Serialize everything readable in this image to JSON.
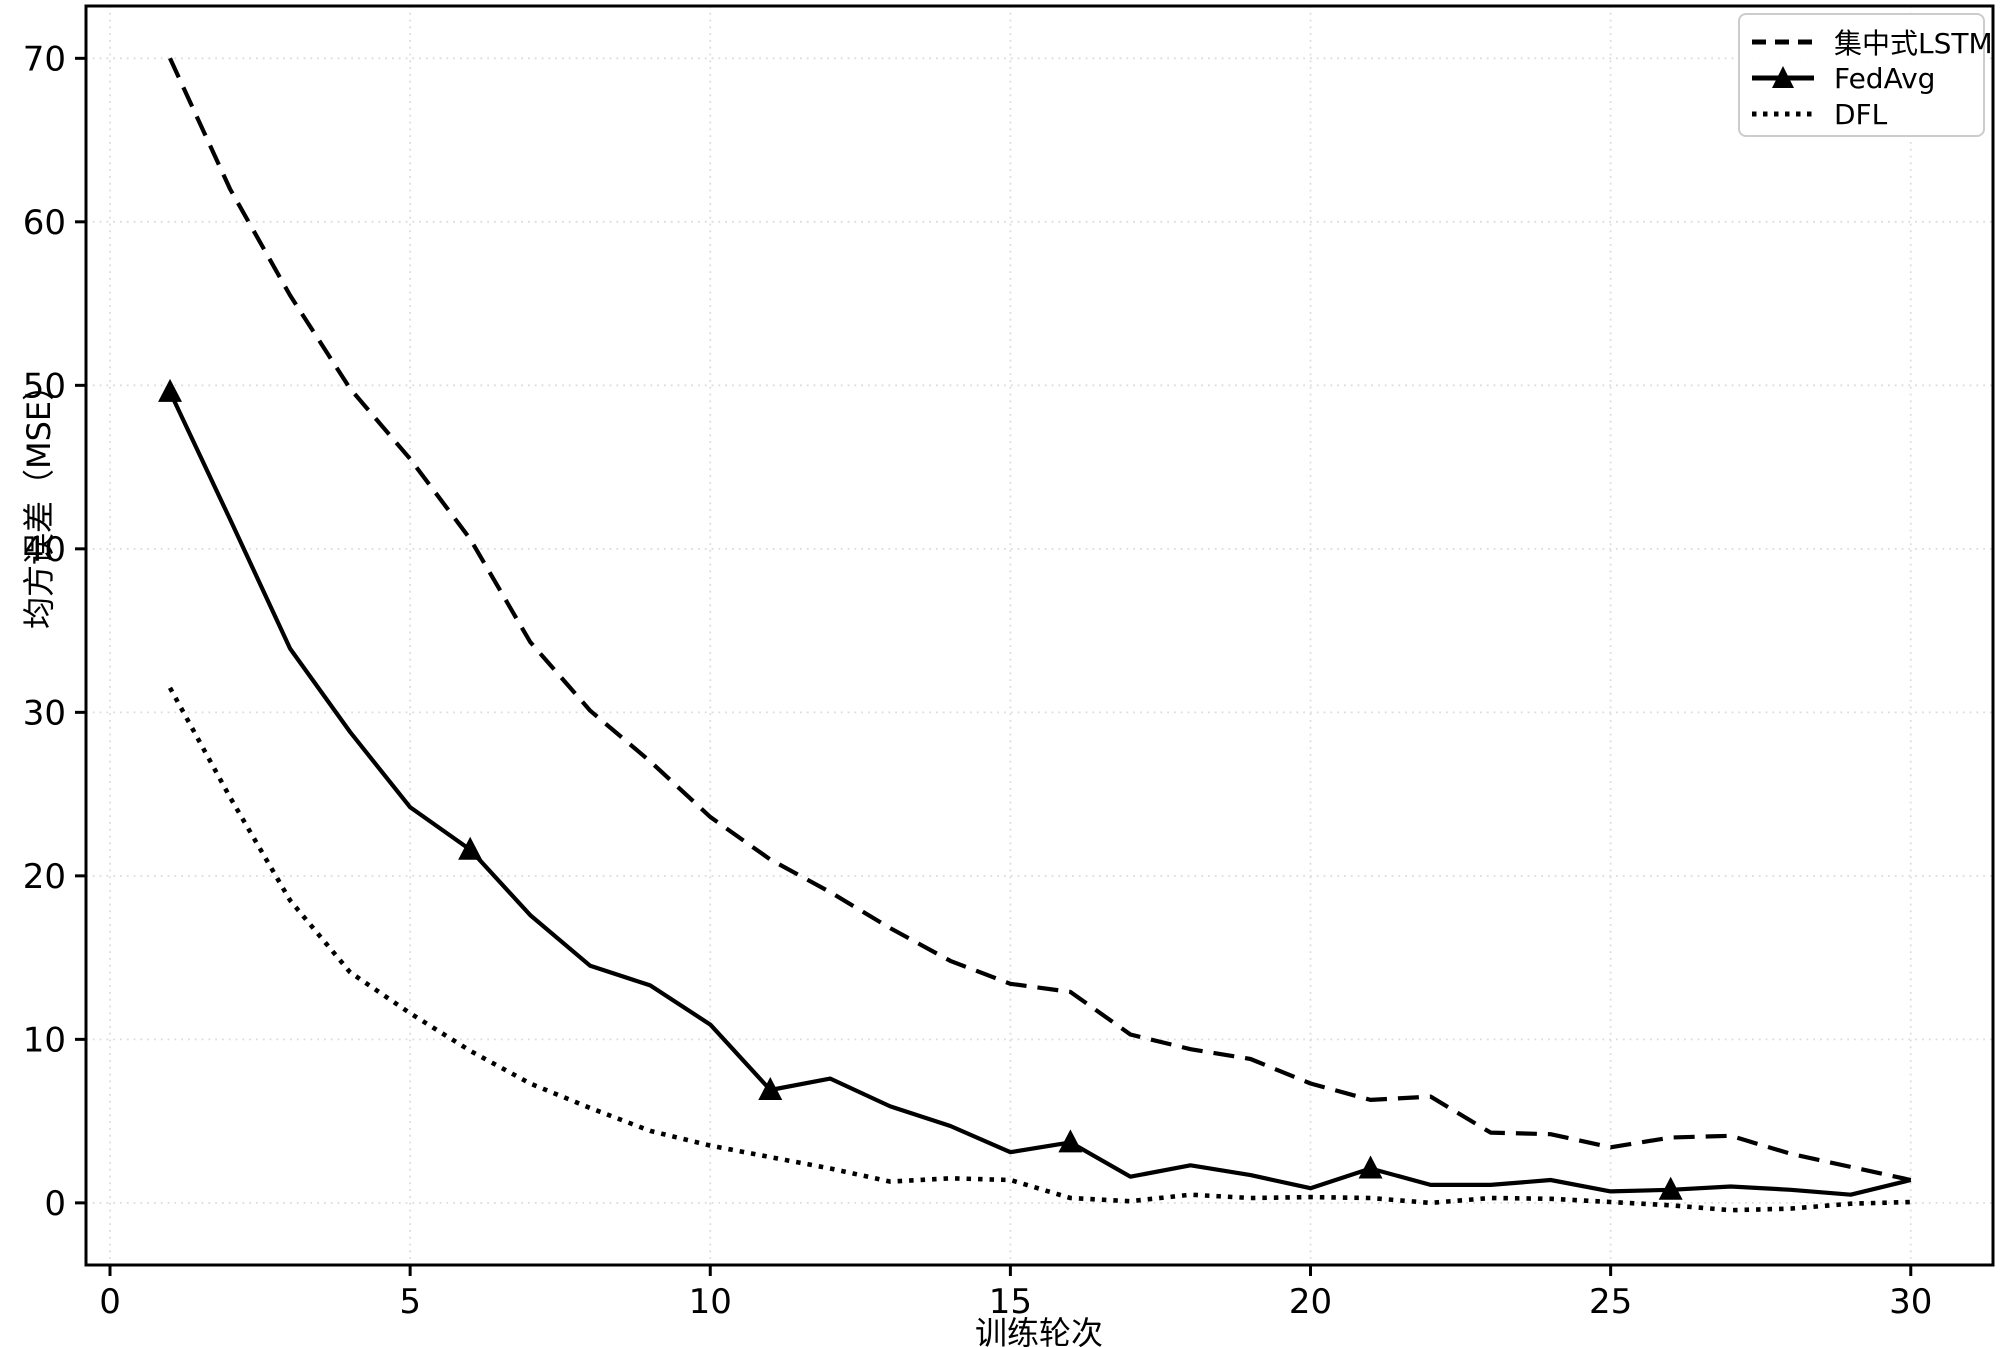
{
  "chart_data": {
    "type": "line",
    "title": "",
    "xlabel": "训练轮次",
    "ylabel": "均方误差（MSE）",
    "x": [
      1,
      2,
      3,
      4,
      5,
      6,
      7,
      8,
      9,
      10,
      11,
      12,
      13,
      14,
      15,
      16,
      17,
      18,
      19,
      20,
      21,
      22,
      23,
      24,
      25,
      26,
      27,
      28,
      29,
      30
    ],
    "series": [
      {
        "name": "集中式LSTM",
        "line_style": "dashed",
        "marker": "none",
        "values": [
          70.0,
          62.0,
          55.5,
          49.8,
          45.5,
          40.6,
          34.3,
          30.1,
          27.0,
          23.6,
          21.0,
          19.0,
          16.8,
          14.8,
          13.4,
          12.9,
          10.3,
          9.4,
          8.8,
          7.3,
          6.3,
          6.5,
          4.3,
          4.2,
          3.4,
          4.0,
          4.1,
          3.0,
          2.2,
          1.4
        ]
      },
      {
        "name": "FedAvg",
        "line_style": "solid",
        "marker": "triangle",
        "marker_every": 5,
        "values": [
          49.6,
          41.8,
          33.9,
          28.8,
          24.2,
          21.6,
          17.6,
          14.5,
          13.3,
          10.9,
          6.9,
          7.6,
          5.9,
          4.7,
          3.1,
          3.7,
          1.6,
          2.3,
          1.7,
          0.9,
          2.1,
          1.1,
          1.1,
          1.4,
          0.7,
          0.8,
          1.0,
          0.8,
          0.5,
          1.4
        ]
      },
      {
        "name": "DFL",
        "line_style": "dotted",
        "marker": "none",
        "values": [
          31.5,
          24.8,
          18.5,
          14.1,
          11.6,
          9.3,
          7.3,
          5.8,
          4.4,
          3.5,
          2.8,
          2.1,
          1.3,
          1.5,
          1.4,
          0.3,
          0.1,
          0.5,
          0.3,
          0.35,
          0.3,
          0.0,
          0.3,
          0.25,
          0.05,
          -0.15,
          -0.45,
          -0.35,
          -0.05,
          0.05
        ]
      }
    ],
    "xticks": [
      0,
      5,
      10,
      15,
      20,
      25,
      30
    ],
    "yticks": [
      0,
      10,
      20,
      30,
      40,
      50,
      60,
      70
    ],
    "xlim": [
      -0.4,
      31.37
    ],
    "ylim": [
      -3.8,
      73.2
    ],
    "grid": true,
    "legend_position": "upper right",
    "colors": {
      "line": "#000000",
      "grid": "#dcdcdc",
      "spine": "#000000",
      "legend_border": "#cccccc",
      "background": "#ffffff"
    }
  }
}
